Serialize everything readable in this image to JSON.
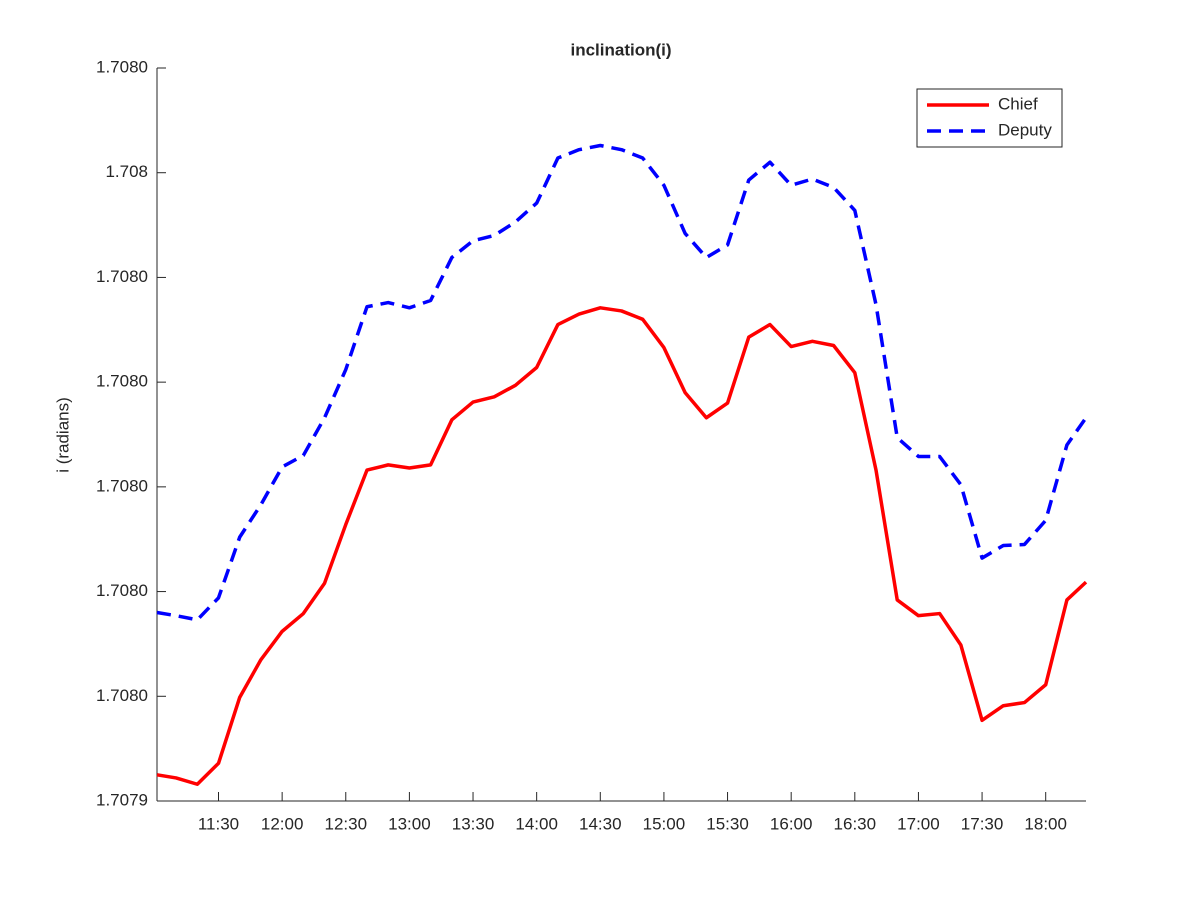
{
  "chart_data": {
    "type": "line",
    "title": "inclination(i)",
    "y_label": "i (radians)",
    "x": [
      "11:01",
      "11:10",
      "11:20",
      "11:30",
      "11:40",
      "11:50",
      "12:00",
      "12:10",
      "12:20",
      "12:30",
      "12:40",
      "12:50",
      "13:00",
      "13:10",
      "13:20",
      "13:30",
      "13:40",
      "13:50",
      "14:00",
      "14:10",
      "14:20",
      "14:30",
      "14:40",
      "14:50",
      "15:00",
      "15:10",
      "15:20",
      "15:30",
      "15:40",
      "15:50",
      "16:00",
      "16:10",
      "16:20",
      "16:30",
      "16:40",
      "16:50",
      "17:00",
      "17:10",
      "17:20",
      "17:30",
      "17:40",
      "17:50",
      "18:00",
      "18:10",
      "18:19"
    ],
    "series": [
      {
        "name": "Chief",
        "color": "#ff0000",
        "dash": "solid",
        "values": [
          1.7079425,
          1.7079422,
          1.7079416,
          1.7079436,
          1.7079499,
          1.7079535,
          1.7079562,
          1.7079579,
          1.7079608,
          1.7079664,
          1.7079716,
          1.7079721,
          1.7079718,
          1.7079721,
          1.7079764,
          1.7079781,
          1.7079786,
          1.7079797,
          1.7079814,
          1.7079855,
          1.7079865,
          1.7079871,
          1.7079868,
          1.707986,
          1.7079833,
          1.707979,
          1.7079766,
          1.707978,
          1.7079843,
          1.7079855,
          1.7079834,
          1.7079839,
          1.7079835,
          1.7079809,
          1.7079716,
          1.7079592,
          1.7079577,
          1.7079579,
          1.7079549,
          1.7079477,
          1.7079491,
          1.7079494,
          1.7079511,
          1.7079592,
          1.7079609
        ]
      },
      {
        "name": "Deputy",
        "color": "#0000ff",
        "dash": "dashed",
        "values": [
          1.707958,
          1.7079577,
          1.7079573,
          1.7079594,
          1.7079652,
          1.7079683,
          1.7079719,
          1.707973,
          1.7079766,
          1.7079812,
          1.7079872,
          1.7079876,
          1.7079871,
          1.7079878,
          1.7079919,
          1.7079935,
          1.707994,
          1.7079953,
          1.7079971,
          1.7080014,
          1.7080022,
          1.7080026,
          1.7080022,
          1.7080014,
          1.7079988,
          1.7079942,
          1.7079919,
          1.7079931,
          1.7079993,
          1.708001,
          1.7079988,
          1.7079994,
          1.7079986,
          1.7079964,
          1.7079874,
          1.7079747,
          1.7079729,
          1.7079729,
          1.7079702,
          1.7079632,
          1.7079644,
          1.7079645,
          1.7079668,
          1.707974,
          1.7079766
        ]
      }
    ],
    "xlim": [
      "11:01",
      "18:19"
    ],
    "xticks": [
      "11:30",
      "12:00",
      "12:30",
      "13:00",
      "13:30",
      "14:00",
      "14:30",
      "15:00",
      "15:30",
      "16:00",
      "16:30",
      "17:00",
      "17:30",
      "18:00"
    ],
    "ylim": [
      1.70794,
      1.70801
    ],
    "yticks": [
      {
        "value": 1.70794,
        "label": "1.7079"
      },
      {
        "value": 1.70795,
        "label": "1.7080"
      },
      {
        "value": 1.70796,
        "label": "1.7080"
      },
      {
        "value": 1.70797,
        "label": "1.7080"
      },
      {
        "value": 1.70798,
        "label": "1.7080"
      },
      {
        "value": 1.70799,
        "label": "1.7080"
      },
      1.708,
      {
        "value": 1.70801,
        "label": "1.7080"
      }
    ],
    "grid": false,
    "legend": "northeast"
  }
}
